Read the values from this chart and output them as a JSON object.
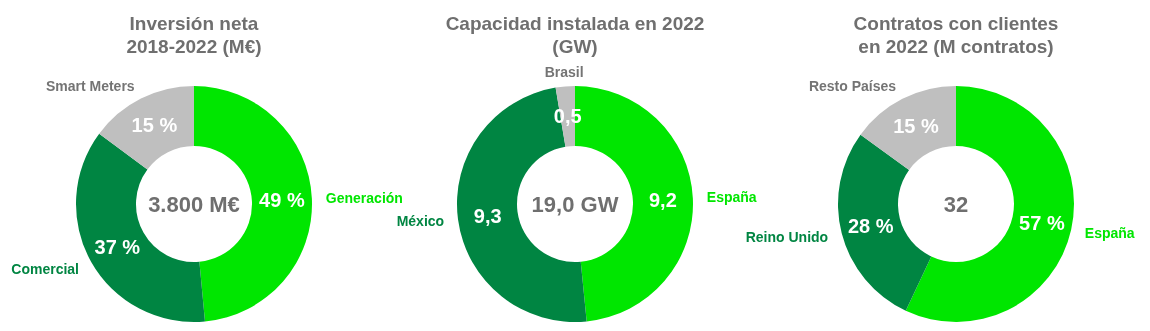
{
  "chart_data": [
    {
      "type": "donut",
      "title": "Inversión neta\n2018-2022 (M€)",
      "categories": [
        "Generación",
        "Comercial",
        "Smart Meters"
      ],
      "values": [
        49,
        37,
        15
      ],
      "colors": [
        "#00e600",
        "#008542",
        "#bfbfbf"
      ],
      "value_labels": [
        "49 %",
        "37 %",
        "15 %"
      ],
      "annotations": [
        "3.800 M€"
      ]
    },
    {
      "type": "donut",
      "title": "Capacidad instalada en 2022\n(GW)",
      "categories": [
        "España",
        "México",
        "Brasil"
      ],
      "values": [
        9.2,
        9.3,
        0.5
      ],
      "colors": [
        "#00e600",
        "#008542",
        "#bfbfbf"
      ],
      "value_labels": [
        "9,2",
        "9,3",
        "0,5"
      ],
      "annotations": [
        "19,0 GW"
      ]
    },
    {
      "type": "donut",
      "title": "Contratos con clientes\nen 2022 (M contratos)",
      "categories": [
        "España",
        "Reino Unido",
        "Resto Países"
      ],
      "values": [
        57,
        28,
        15
      ],
      "colors": [
        "#00e600",
        "#008542",
        "#bfbfbf"
      ],
      "value_labels": [
        "57 %",
        "28 %",
        "15 %"
      ],
      "annotations": [
        "32"
      ]
    }
  ]
}
